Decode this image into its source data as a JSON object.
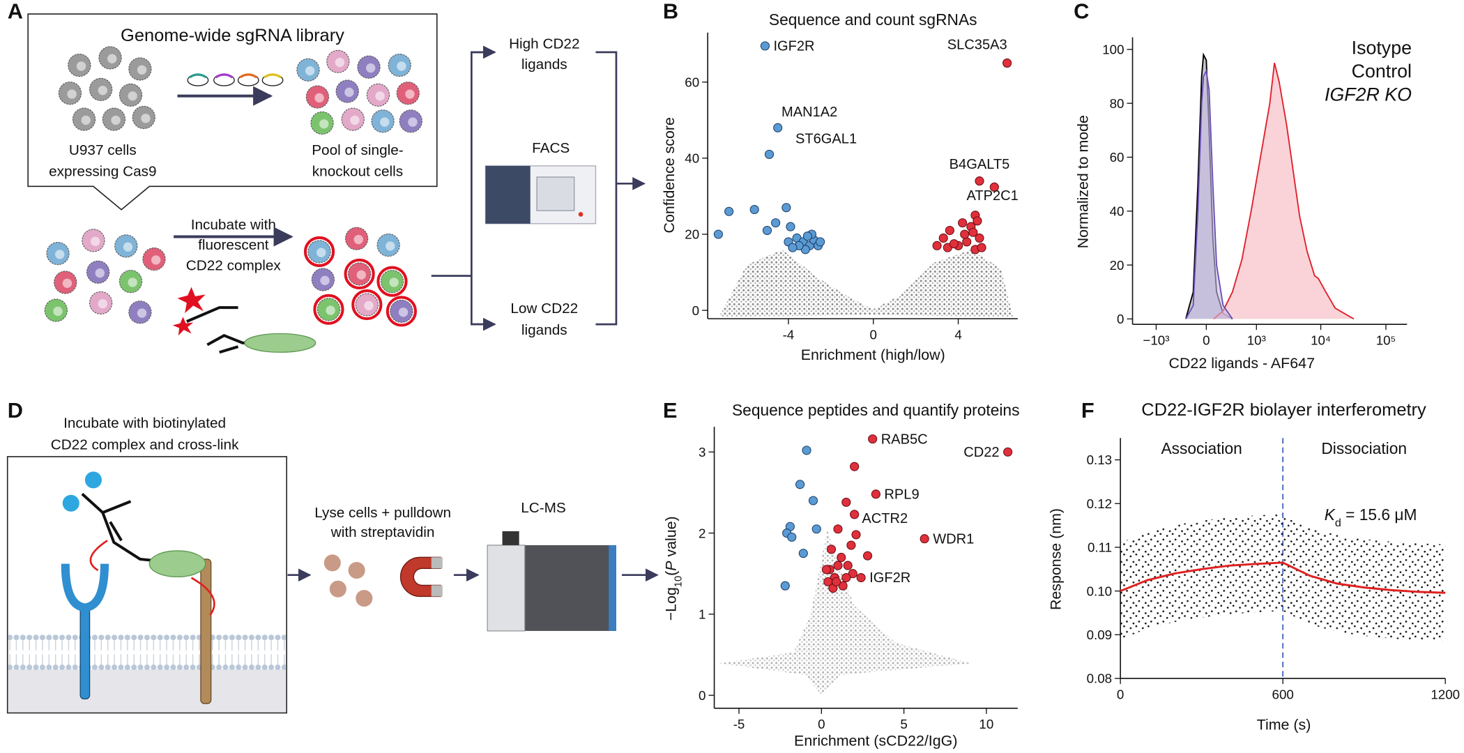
{
  "panel_letters": [
    "A",
    "B",
    "C",
    "D",
    "E",
    "F"
  ],
  "diagram_a": {
    "library_title": "Genome-wide sgRNA library",
    "parental_cells": [
      "U937 cells",
      "expressing Cas9"
    ],
    "pool": [
      "Pool of single-",
      "knockout cells"
    ],
    "incubation": [
      "Incubate with",
      "fluorescent",
      "CD22 complex"
    ],
    "high_sort": [
      "High CD22",
      "ligands"
    ],
    "sorter": "FACS",
    "low_sort": [
      "Low CD22",
      "ligands"
    ]
  },
  "diagram_d": {
    "incubation": [
      "Incubate with biotinylated",
      "CD22 complex and cross-link"
    ],
    "pulldown": [
      "Lyse cells + pulldown",
      "with streptavidin"
    ],
    "instrument": "LC-MS"
  },
  "chart_data": [
    {
      "type": "scatter",
      "title": "Sequence and count sgRNAs",
      "x_label": "Enrichment (high/low)",
      "y_label": "Confidence score",
      "xlim": [
        -7.8,
        6.8
      ],
      "ylim": [
        -2.2,
        73
      ],
      "xticks": [
        -4,
        0,
        4
      ],
      "yticks": [
        0,
        20,
        40,
        60
      ],
      "series": [
        {
          "color": "#5b9bd5",
          "edgecolor": "#1d3f66",
          "x": [
            -5.1,
            -4.5,
            -4.9,
            -7.3,
            -6.8,
            -5.6,
            -4.1,
            -4.6,
            -5.0,
            -3.9,
            -3.6,
            -3.3,
            -3.0,
            -2.8,
            -3.2,
            -2.6,
            -3.5,
            -2.9,
            -4.0,
            -2.5,
            -3.1,
            -3.8
          ],
          "values": [
            69.5,
            48,
            41,
            20,
            26,
            26.5,
            27,
            23,
            21,
            22,
            19,
            18,
            17,
            18.5,
            16,
            17,
            17,
            20,
            18,
            18,
            19.5,
            16.5
          ],
          "labels": [
            "IGF2R",
            "MAN1A2",
            "ST6GAL1",
            null,
            null,
            null,
            null,
            null,
            null,
            null,
            null,
            null,
            null,
            null,
            null,
            null,
            null,
            null,
            null,
            null,
            null,
            null
          ]
        },
        {
          "color": "#e0303c",
          "edgecolor": "#6b0d12",
          "x": [
            6.3,
            5.0,
            5.7,
            4.8,
            4.9,
            4.6,
            4.2,
            3.6,
            3.3,
            3.0,
            3.5,
            4.0,
            4.4,
            4.8,
            5.0,
            4.3,
            3.8,
            4.7,
            5.1
          ],
          "values": [
            65,
            34,
            32.4,
            25,
            23.5,
            22,
            23,
            21,
            19,
            17,
            16.5,
            17,
            18,
            16,
            19,
            20,
            17.5,
            20.5,
            16.5
          ],
          "labels": [
            "SLC35A3",
            "B4GALT5",
            "ATP2C1",
            null,
            null,
            null,
            null,
            null,
            null,
            null,
            null,
            null,
            null,
            null,
            null,
            null,
            null,
            null,
            null
          ]
        }
      ]
    },
    {
      "type": "line",
      "x_label": "CD22 ligands - AF647",
      "y_label": "Normalized to mode",
      "xscale": "biexponential",
      "xlim": [
        -2360,
        211000
      ],
      "ylim": [
        -2,
        104.5
      ],
      "xticks": [
        {
          "value": -1000,
          "label": "−10³"
        },
        0,
        {
          "value": 1000,
          "label": "10³"
        },
        {
          "value": 10000,
          "label": "10⁴"
        },
        {
          "value": 100000,
          "label": "10⁵"
        }
      ],
      "yticks": [
        0,
        20,
        40,
        60,
        80,
        100
      ],
      "legend": "upper right",
      "series": [
        {
          "name": "Isotype",
          "color": "#000000",
          "fill": "#a0a0ae",
          "x": [
            -277,
            -168,
            -105,
            -58,
            -35,
            0,
            35,
            82,
            130,
            220,
            372
          ],
          "values": [
            0,
            10,
            50,
            90,
            98,
            96,
            70,
            30,
            10,
            2,
            0
          ]
        },
        {
          "name": "Control",
          "color": "#e0202c",
          "fill": "#f5b5bc",
          "x": [
            93,
            220,
            372,
            565,
            817,
            1161,
            1632,
            1932,
            2282,
            2979,
            3756,
            4743,
            6174,
            8040,
            9184,
            11956,
            16625,
            23135,
            32200
          ],
          "values": [
            0,
            3,
            10,
            22,
            40,
            60,
            80,
            95,
            88,
            72,
            55,
            38,
            25,
            16,
            15,
            10,
            4,
            2,
            0
          ]
        },
        {
          "name": "IGF2R KO",
          "color": "#6a4fb3",
          "fill": "#c8bce6",
          "x": [
            -277,
            -168,
            -105,
            -58,
            -35,
            0,
            35,
            82,
            130,
            220,
            372
          ],
          "values": [
            0,
            5,
            40,
            80,
            90,
            92,
            85,
            50,
            20,
            5,
            0
          ]
        }
      ]
    },
    {
      "type": "scatter",
      "title": "Sequence peptides and quantify proteins",
      "x_label": "Enrichment (sCD22/IgG)",
      "y_label_parts": [
        "−Log",
        "10",
        "(",
        "P",
        " value)"
      ],
      "xlim": [
        -6.5,
        11.9
      ],
      "ylim": [
        -0.16,
        3.31
      ],
      "xticks": [
        -5,
        0,
        5,
        10
      ],
      "yticks": [
        0,
        1,
        2,
        3
      ],
      "series": [
        {
          "color": "#5b9bd5",
          "edgecolor": "#1d3f66",
          "x": [
            -0.9,
            -1.3,
            -0.5,
            -0.3,
            -1.9,
            -2.1,
            -1.8,
            -2.2,
            -1.1
          ],
          "values": [
            3.02,
            2.6,
            2.4,
            2.05,
            2.08,
            2.0,
            1.95,
            1.35,
            1.75
          ]
        },
        {
          "color": "#e0303c",
          "edgecolor": "#6b0d12",
          "x": [
            11.3,
            3.1,
            3.3,
            2.0,
            6.25,
            2.4,
            2.0,
            1.5,
            1.0,
            2.1,
            0.6,
            1.2,
            0.5,
            1.6,
            0.8,
            1.9,
            0.4,
            1.3,
            0.7,
            1.0,
            2.8,
            1.8,
            0.3,
            1.5,
            0.9
          ],
          "values": [
            3.0,
            3.16,
            2.48,
            2.23,
            1.93,
            1.45,
            2.82,
            2.38,
            2.05,
            1.98,
            1.8,
            1.7,
            1.55,
            1.6,
            1.45,
            1.5,
            1.4,
            1.35,
            1.32,
            1.6,
            1.72,
            1.85,
            1.55,
            1.45,
            1.4
          ],
          "labels": [
            "CD22",
            "RAB5C",
            "RPL9",
            "ACTR2",
            "WDR1",
            "IGF2R",
            null,
            null,
            null,
            null,
            null,
            null,
            null,
            null,
            null,
            null,
            null,
            null,
            null,
            null,
            null,
            null,
            null,
            null,
            null
          ]
        }
      ]
    },
    {
      "type": "line",
      "title": "CD22-IGF2R biolayer interferometry",
      "x_label": "Time (s)",
      "y_label": "Response (nm)",
      "xlim": [
        0,
        1200
      ],
      "ylim": [
        0.08,
        0.135
      ],
      "xticks": [
        0,
        600,
        1200
      ],
      "yticks": [
        0.08,
        0.09,
        {
          "value": 0.1,
          "label": "0.10"
        },
        0.11,
        0.12,
        0.13
      ],
      "vline": 600,
      "vline_color": "#3a5bbf",
      "phase_labels": [
        "Association",
        "Dissociation"
      ],
      "kd_parts": [
        "K",
        "d",
        " = 15.6 μM"
      ],
      "series": [
        {
          "color": "#e02020",
          "x": [
            0,
            100,
            200,
            300,
            400,
            500,
            600,
            700,
            800,
            900,
            1000,
            1100,
            1200
          ],
          "values": [
            0.1,
            0.1025,
            0.104,
            0.105,
            0.1058,
            0.1062,
            0.1065,
            0.1035,
            0.1017,
            0.1008,
            0.1002,
            0.0998,
            0.0996
          ]
        }
      ]
    }
  ]
}
